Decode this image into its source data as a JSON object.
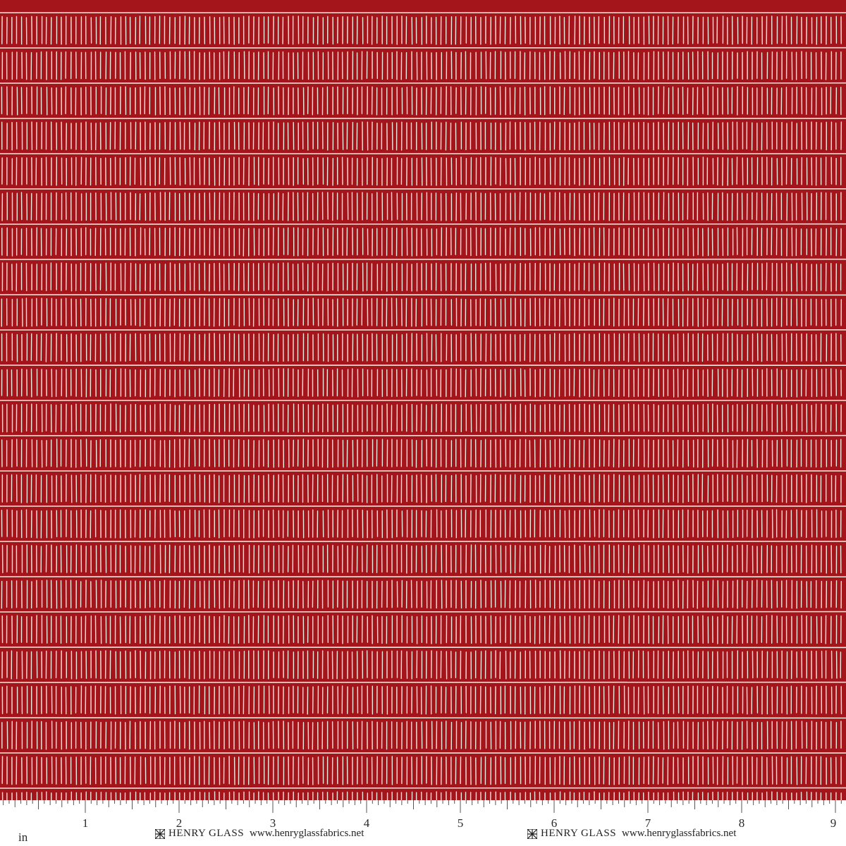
{
  "fabric": {
    "background_color": "#a3141b",
    "stripe_color": "#f4e9de"
  },
  "ruler": {
    "unit_label": "in",
    "numbers": [
      "1",
      "2",
      "3",
      "4",
      "5",
      "6",
      "7",
      "8",
      "9"
    ]
  },
  "branding": [
    {
      "name": "HENRY GLASS",
      "url": "www.henryglassfabrics.net",
      "logo_icon": "henry-glass-logo-icon"
    },
    {
      "name": "HENRY GLASS",
      "url": "www.henryglassfabrics.net",
      "logo_icon": "henry-glass-logo-icon"
    }
  ]
}
